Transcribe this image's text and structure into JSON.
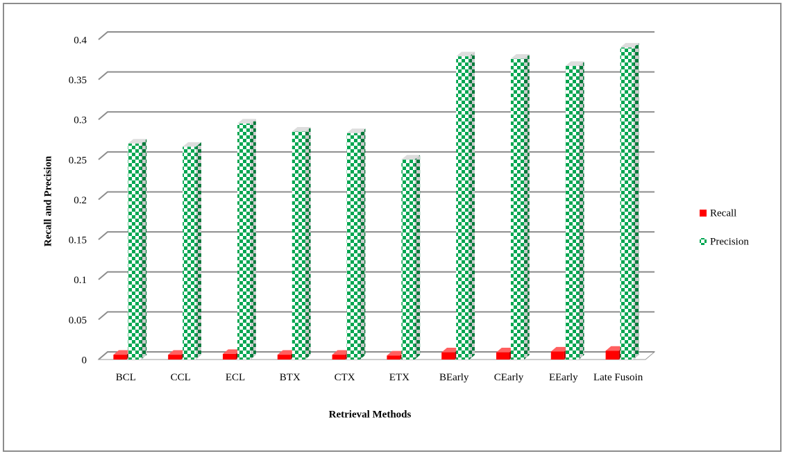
{
  "chart_data": {
    "type": "bar3d",
    "categories": [
      "BCL",
      "CCL",
      "ECL",
      "BTX",
      "CTX",
      "ETX",
      "BEarly",
      "CEarly",
      "EEarly",
      "Late Fusoin"
    ],
    "series": [
      {
        "name": "Recall",
        "color": "#ff0000",
        "values": [
          0.006,
          0.006,
          0.007,
          0.006,
          0.006,
          0.005,
          0.009,
          0.009,
          0.01,
          0.011
        ]
      },
      {
        "name": "Precision",
        "color": "#00a651",
        "values": [
          0.27,
          0.266,
          0.295,
          0.285,
          0.283,
          0.25,
          0.379,
          0.376,
          0.367,
          0.39
        ]
      }
    ],
    "ylim": [
      0,
      0.4
    ],
    "yticks": [
      0,
      0.05,
      0.1,
      0.15,
      0.2,
      0.25,
      0.3,
      0.35,
      0.4
    ],
    "xlabel": "Retrieval Methods",
    "ylabel": "Recall and Precision",
    "grid": true,
    "legend": "right"
  }
}
